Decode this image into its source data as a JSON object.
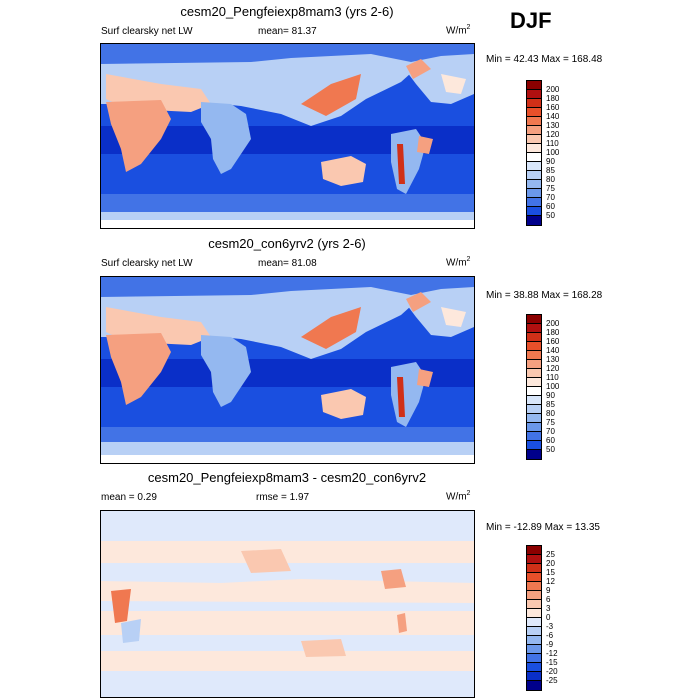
{
  "season": "DJF",
  "panels": [
    {
      "title": "cesm20_Pengfeiexp8mam3 (yrs 2-6)",
      "left_label": "Surf clearsky net LW",
      "center_label": "mean=  81.37",
      "units": "W/m",
      "units_sup": "2",
      "minmax": "Min =  42.43 Max = 168.48"
    },
    {
      "title": "cesm20_con6yrv2 (yrs 2-6)",
      "left_label": "Surf clearsky net LW",
      "center_label": "mean=  81.08",
      "units": "W/m",
      "units_sup": "2",
      "minmax": "Min =  38.88 Max = 168.28"
    },
    {
      "title": "cesm20_Pengfeiexp8mam3 - cesm20_con6yrv2",
      "left_label": "mean =   0.29",
      "center_label": "rmse =   1.97",
      "units": "W/m",
      "units_sup": "2",
      "minmax": "Min = -12.89 Max =  13.35"
    }
  ],
  "colorbars": [
    {
      "labels": [
        "200",
        "180",
        "160",
        "140",
        "130",
        "120",
        "110",
        "100",
        "90",
        "85",
        "80",
        "75",
        "70",
        "60",
        "50"
      ],
      "colors": [
        "#8b0000",
        "#b01010",
        "#d03018",
        "#e8502a",
        "#f07850",
        "#f5a080",
        "#fac8b0",
        "#fde8dc",
        "#ffffff",
        "#d8e6fa",
        "#b8d0f5",
        "#94b8f0",
        "#6b98ea",
        "#4273e6",
        "#1a4fe0",
        "#00008b"
      ]
    },
    {
      "labels": [
        "200",
        "180",
        "160",
        "140",
        "130",
        "120",
        "110",
        "100",
        "90",
        "85",
        "80",
        "75",
        "70",
        "60",
        "50"
      ],
      "colors": [
        "#8b0000",
        "#b01010",
        "#d03018",
        "#e8502a",
        "#f07850",
        "#f5a080",
        "#fac8b0",
        "#fde8dc",
        "#ffffff",
        "#d8e6fa",
        "#b8d0f5",
        "#94b8f0",
        "#6b98ea",
        "#4273e6",
        "#1a4fe0",
        "#00008b"
      ]
    },
    {
      "labels": [
        "25",
        "20",
        "15",
        "12",
        "9",
        "6",
        "3",
        "0",
        "-3",
        "-6",
        "-9",
        "-12",
        "-15",
        "-20",
        "-25"
      ],
      "colors": [
        "#8b0000",
        "#b01010",
        "#d03018",
        "#e8502a",
        "#f07850",
        "#f5a080",
        "#fac8b0",
        "#fde8dc",
        "#dfe9fb",
        "#b8d0f5",
        "#94b8f0",
        "#6b98ea",
        "#4273e6",
        "#1a4fe0",
        "#0a2fc8",
        "#00008b"
      ]
    }
  ]
}
